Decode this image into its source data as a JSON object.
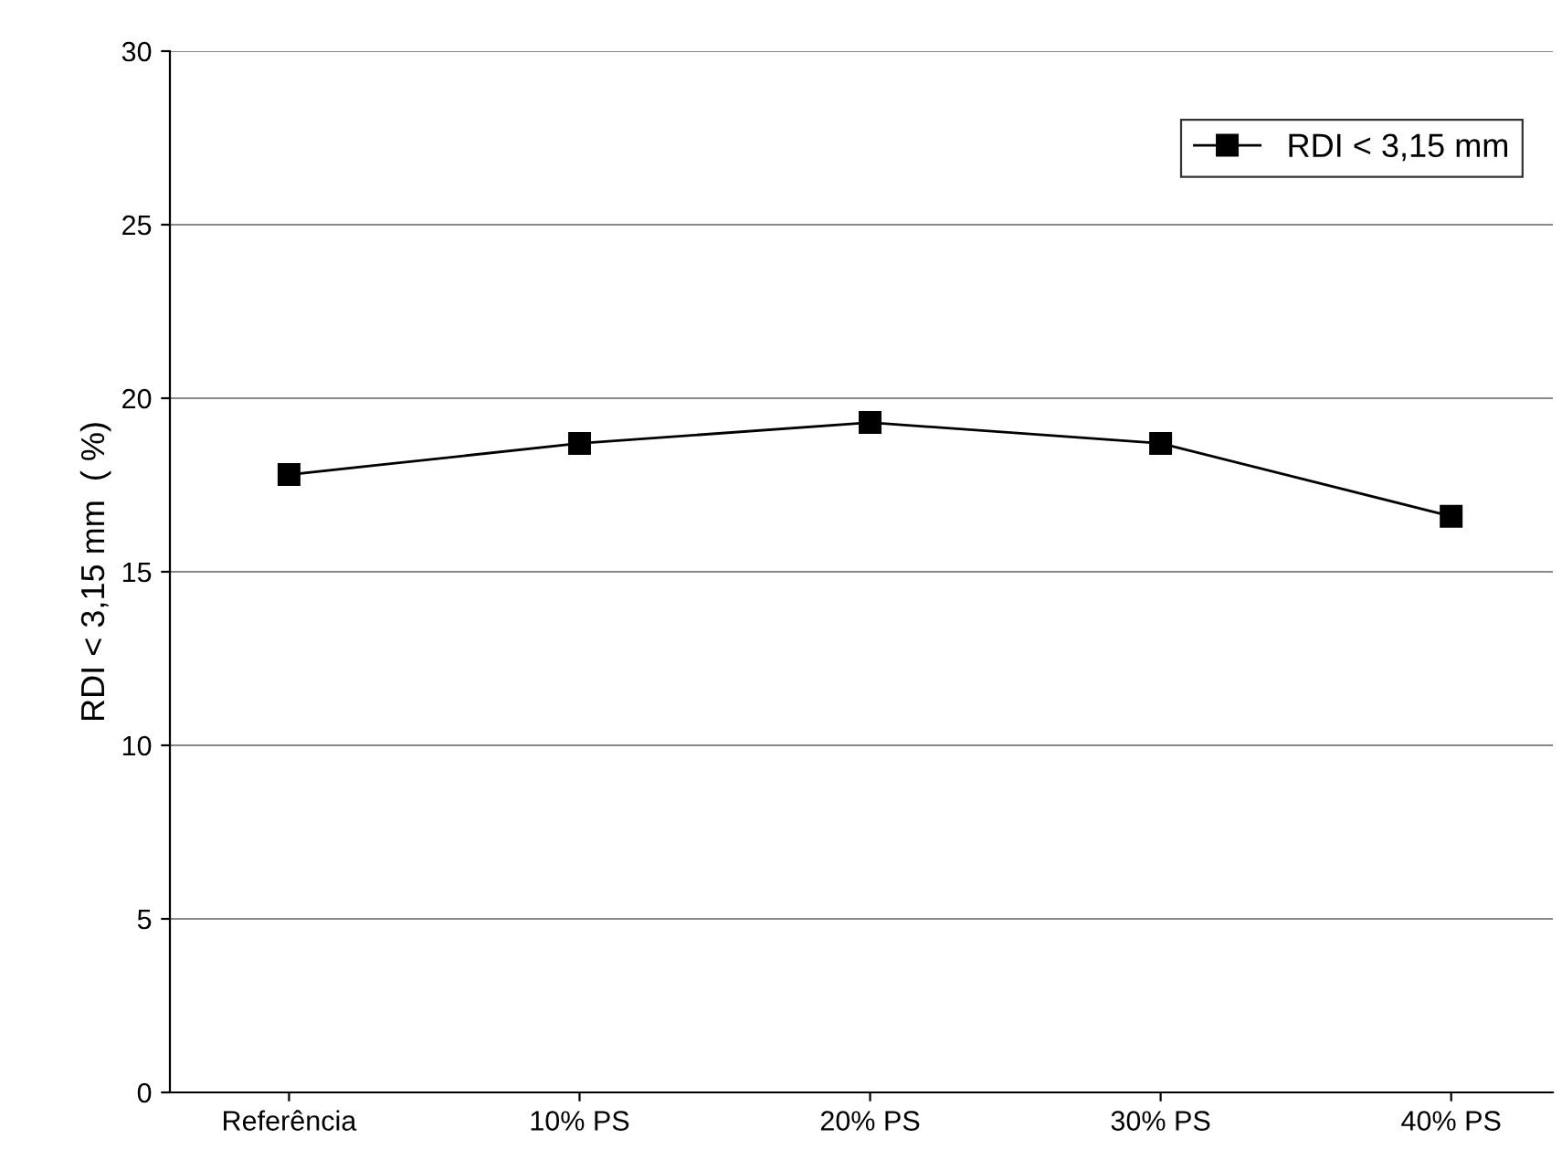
{
  "chart_data": {
    "type": "line",
    "ylabel": "RDI < 3,15 mm  ( %)",
    "categories": [
      "Referência",
      "10% PS",
      "20% PS",
      "30% PS",
      "40% PS"
    ],
    "series": [
      {
        "name": "RDI < 3,15 mm",
        "color": "#000000",
        "values": [
          17.8,
          18.7,
          19.3,
          18.7,
          16.6
        ]
      }
    ],
    "ylim": [
      0,
      30
    ],
    "yticks": [
      0,
      5,
      10,
      15,
      20,
      25,
      30
    ],
    "grid": "y",
    "legend": "top right",
    "marker": "square",
    "line_style": "solid"
  }
}
